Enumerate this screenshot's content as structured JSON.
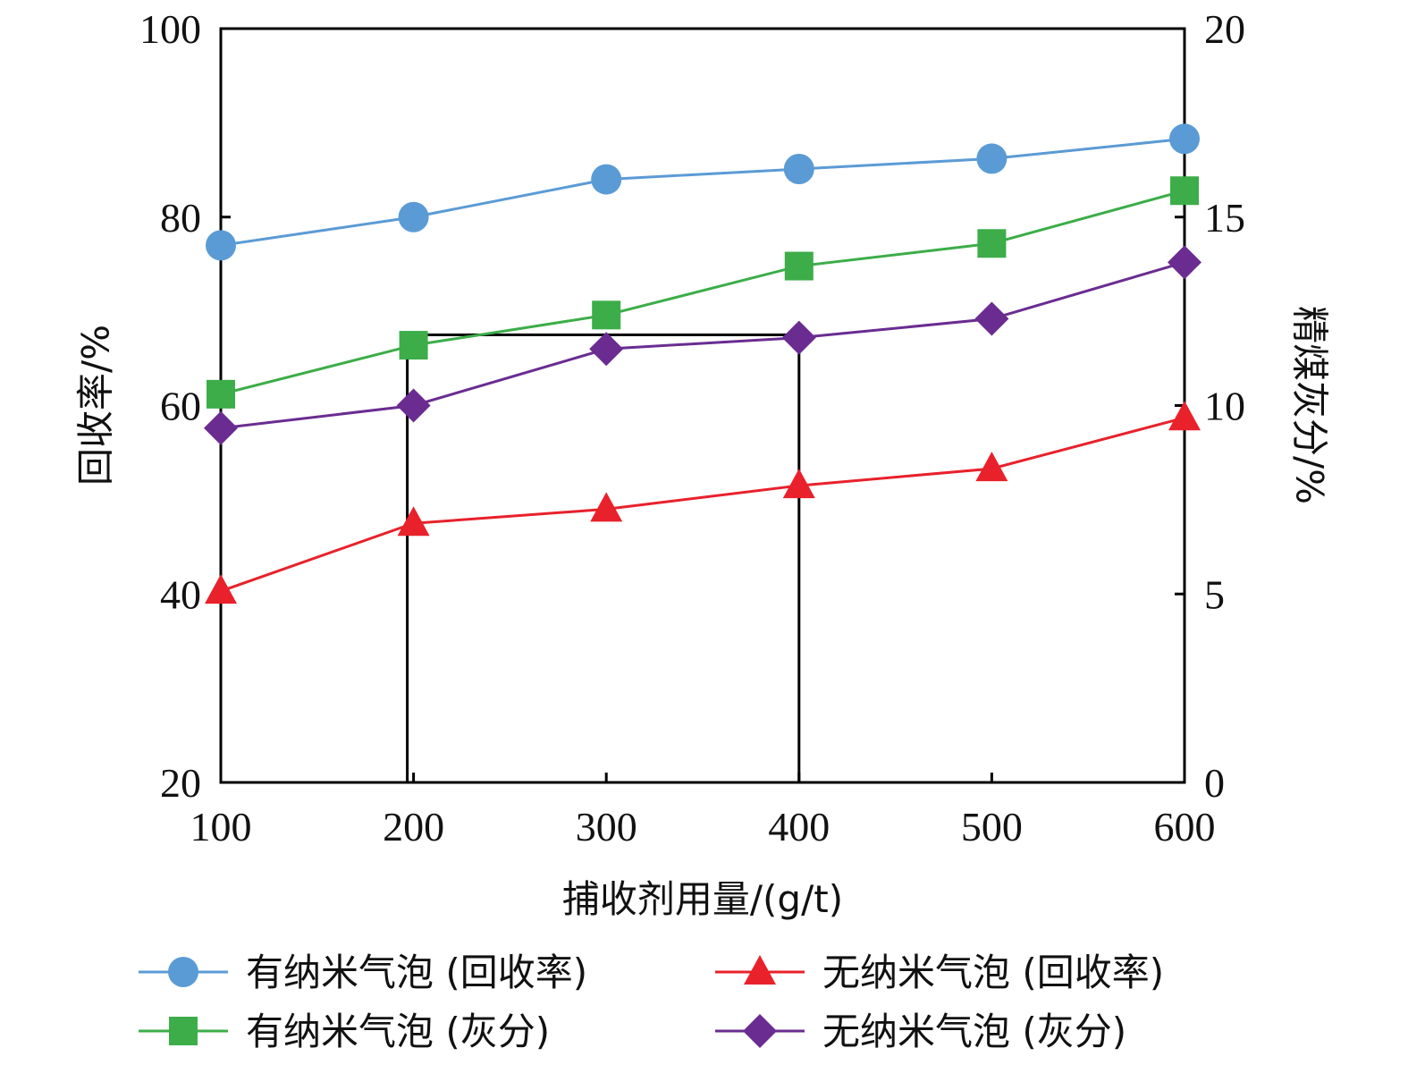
{
  "chart_data": {
    "type": "line",
    "xlabel": "捕收剂用量/(g/t)",
    "ylabel_left": "回收率/%",
    "ylabel_right": "精煤灰分/%",
    "x_ticks": [
      "100",
      "200",
      "300",
      "400",
      "500",
      "600"
    ],
    "xlim": [
      100,
      600
    ],
    "ylim_left": [
      20,
      100
    ],
    "ylim_right": [
      0,
      20
    ],
    "yticks_left": [
      "20",
      "40",
      "60",
      "80",
      "100"
    ],
    "yticks_right": [
      "0",
      "5",
      "10",
      "15",
      "20"
    ],
    "grid": false,
    "legend_position": "bottom",
    "highlight_box": {
      "x_range": [
        200,
        400
      ],
      "y_top_left_axis": 67.5
    },
    "series": [
      {
        "name": "有纳米气泡 (回收率)",
        "axis": "left",
        "marker": "circle",
        "color": "#5b9bd5",
        "x": [
          100,
          200,
          300,
          400,
          500,
          600
        ],
        "y": [
          77.0,
          80.0,
          84.0,
          85.1,
          86.2,
          88.3
        ]
      },
      {
        "name": "无纳米气泡 (回收率)",
        "axis": "left",
        "marker": "triangle",
        "color": "#e8212b",
        "x": [
          100,
          200,
          300,
          400,
          500,
          600
        ],
        "y": [
          40.3,
          47.5,
          49.0,
          51.5,
          53.3,
          58.7
        ]
      },
      {
        "name": "有纳米气泡 (灰分)",
        "axis": "right",
        "marker": "square",
        "color": "#3cad48",
        "x": [
          100,
          200,
          300,
          400,
          500,
          600
        ],
        "y": [
          10.3,
          11.6,
          12.4,
          13.7,
          14.3,
          15.7
        ]
      },
      {
        "name": "无纳米气泡 (灰分)",
        "axis": "right",
        "marker": "diamond",
        "color": "#6a2c91",
        "x": [
          100,
          200,
          300,
          400,
          500,
          600
        ],
        "y": [
          9.4,
          10.0,
          11.5,
          11.8,
          12.3,
          13.8
        ]
      }
    ]
  }
}
